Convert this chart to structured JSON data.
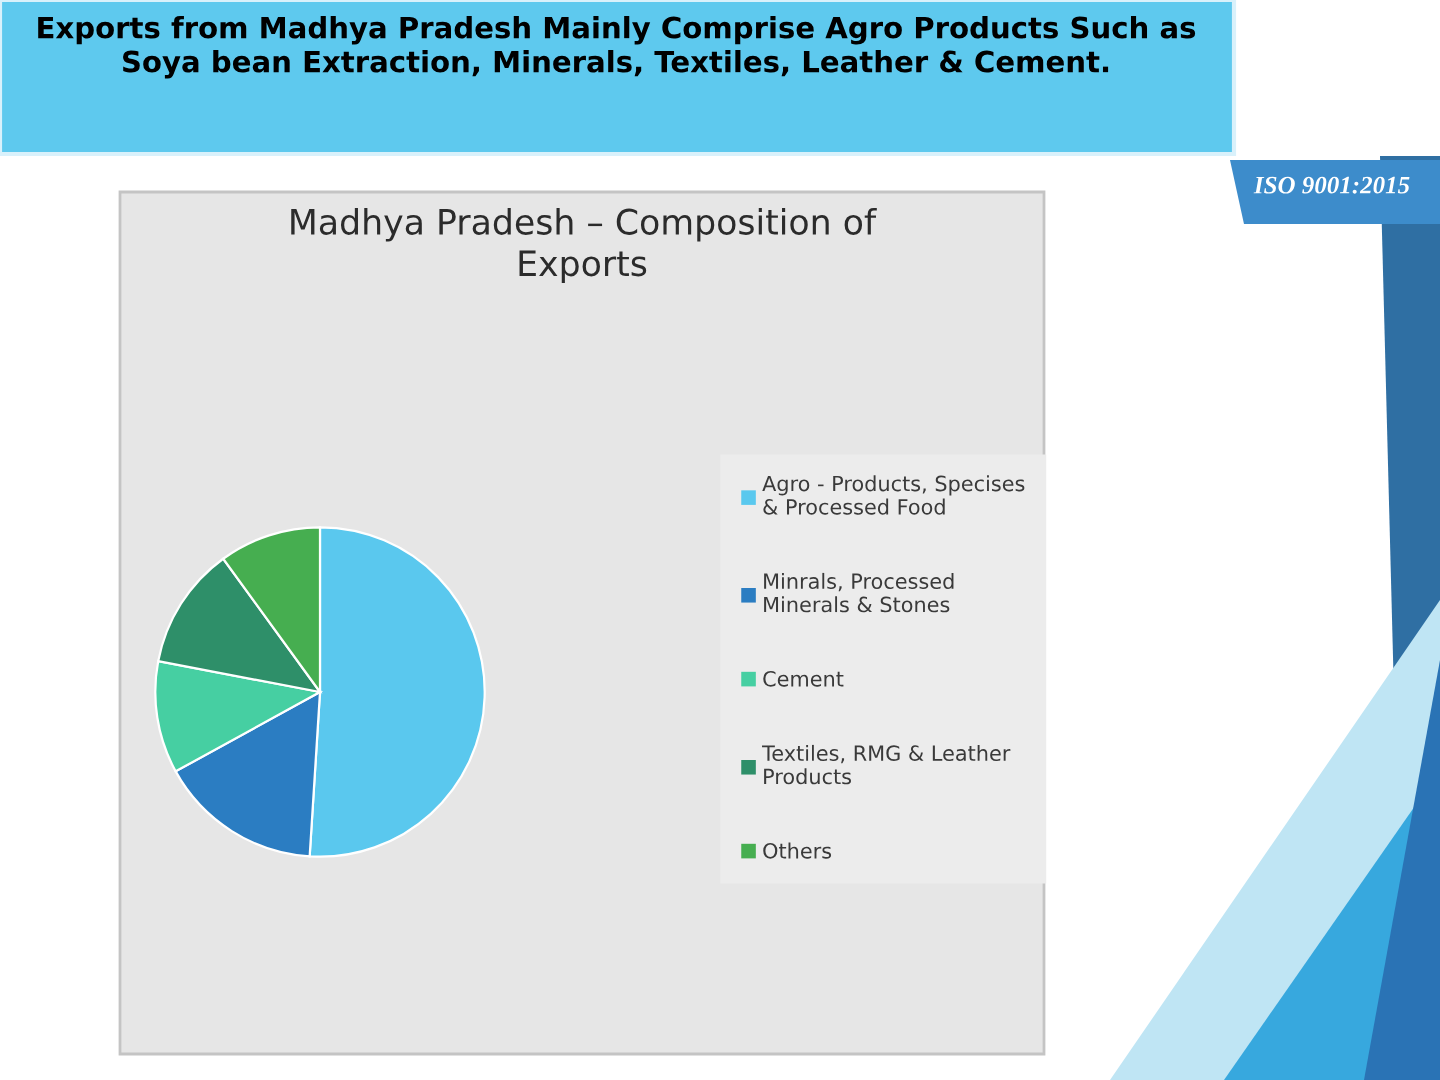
{
  "chart_data": {
    "type": "pie",
    "title": "Madhya Pradesh – Composition of Exports",
    "categories": [
      "Agro - Products, Specises & Processed Food",
      "Minrals, Processed Minerals & Stones",
      "Cement",
      "Textiles, RMG & Leather Products",
      "Others"
    ],
    "values": [
      51,
      16,
      11,
      12,
      10
    ],
    "colors": [
      "#5ac8ee",
      "#2b7dc2",
      "#46cfa2",
      "#2e8f69",
      "#46ae50"
    ],
    "legend": "right",
    "annotations": [
      "Exports from Madhya Pradesh Mainly Comprise Agro Products Such as Soya bean Extraction, Minerals, Textiles, Leather & Cement.",
      "ISO 9001:2015"
    ]
  }
}
